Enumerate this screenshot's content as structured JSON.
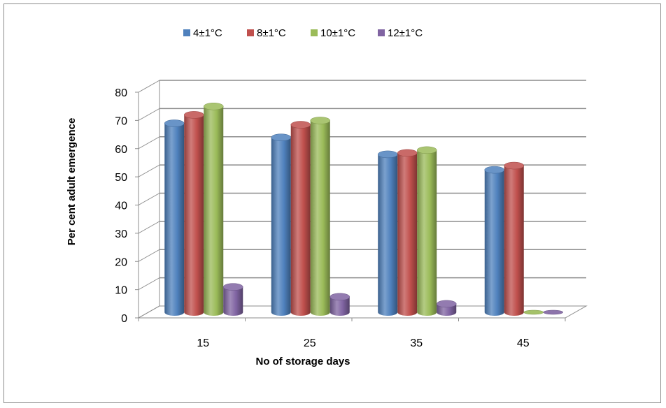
{
  "chart_data": {
    "type": "bar",
    "style": "3d-cylinder",
    "title": "",
    "xlabel": "No of storage days",
    "ylabel": "Per cent adult emergence",
    "categories": [
      "15",
      "25",
      "35",
      "45"
    ],
    "ylim": [
      0,
      80
    ],
    "yticks": [
      "0",
      "10",
      "20",
      "30",
      "40",
      "50",
      "60",
      "70",
      "80"
    ],
    "grid": true,
    "legend_position": "top",
    "series": [
      {
        "name": "4±1°C",
        "color": "#4F81BD",
        "values": [
          67,
          62,
          56,
          50.5
        ]
      },
      {
        "name": "8±1°C",
        "color": "#C0504D",
        "values": [
          70,
          66.5,
          56.5,
          52
        ]
      },
      {
        "name": "10±1°C",
        "color": "#9BBB59",
        "values": [
          73,
          68,
          57.5,
          0
        ]
      },
      {
        "name": "12±1°C",
        "color": "#8064A2",
        "values": [
          9,
          5.5,
          3,
          0
        ]
      }
    ]
  }
}
